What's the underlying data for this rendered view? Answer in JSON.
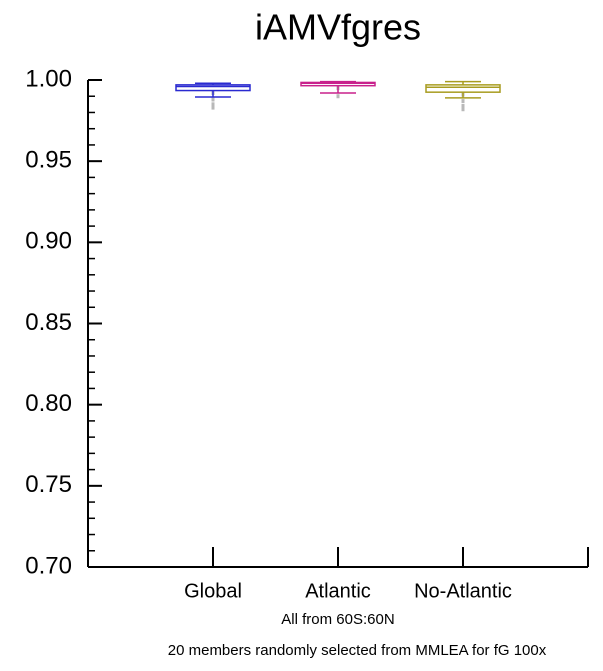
{
  "chart_data": {
    "type": "box",
    "title": "iAMVfgres",
    "categories": [
      "Global",
      "Atlantic",
      "No-Atlantic"
    ],
    "colors": [
      "#2a2ad0",
      "#c8208c",
      "#a89c20"
    ],
    "boxes": [
      {
        "low": 0.9895,
        "q1": 0.9935,
        "median": 0.996,
        "q3": 0.997,
        "high": 0.998,
        "outliers": [
          0.992,
          0.988,
          0.985,
          0.983
        ]
      },
      {
        "low": 0.992,
        "q1": 0.9965,
        "median": 0.998,
        "q3": 0.9985,
        "high": 0.999,
        "outliers": [
          0.995,
          0.99
        ]
      },
      {
        "low": 0.989,
        "q1": 0.9925,
        "median": 0.9955,
        "q3": 0.997,
        "high": 0.999,
        "outliers": [
          0.991,
          0.987,
          0.984,
          0.982
        ]
      }
    ],
    "outlier_color": "#b8b8b8",
    "xlim": [
      0,
      4
    ],
    "ylim": [
      0.7,
      1.0
    ],
    "yticks": [
      {
        "value": 0.7,
        "label": "0.70"
      },
      {
        "value": 0.75,
        "label": "0.75"
      },
      {
        "value": 0.8,
        "label": "0.80"
      },
      {
        "value": 0.85,
        "label": "0.85"
      },
      {
        "value": 0.9,
        "label": "0.90"
      },
      {
        "value": 0.95,
        "label": "0.95"
      },
      {
        "value": 1.0,
        "label": "1.00"
      }
    ],
    "yminorticks": [
      0.71,
      0.72,
      0.73,
      0.74,
      0.76,
      0.77,
      0.78,
      0.79,
      0.81,
      0.82,
      0.83,
      0.84,
      0.86,
      0.87,
      0.88,
      0.89,
      0.91,
      0.92,
      0.93,
      0.94,
      0.96,
      0.97,
      0.98,
      0.99
    ],
    "annotations": [
      "All from 60S:60N",
      "20 members randomly selected from MMLEA for fG 100x"
    ]
  }
}
